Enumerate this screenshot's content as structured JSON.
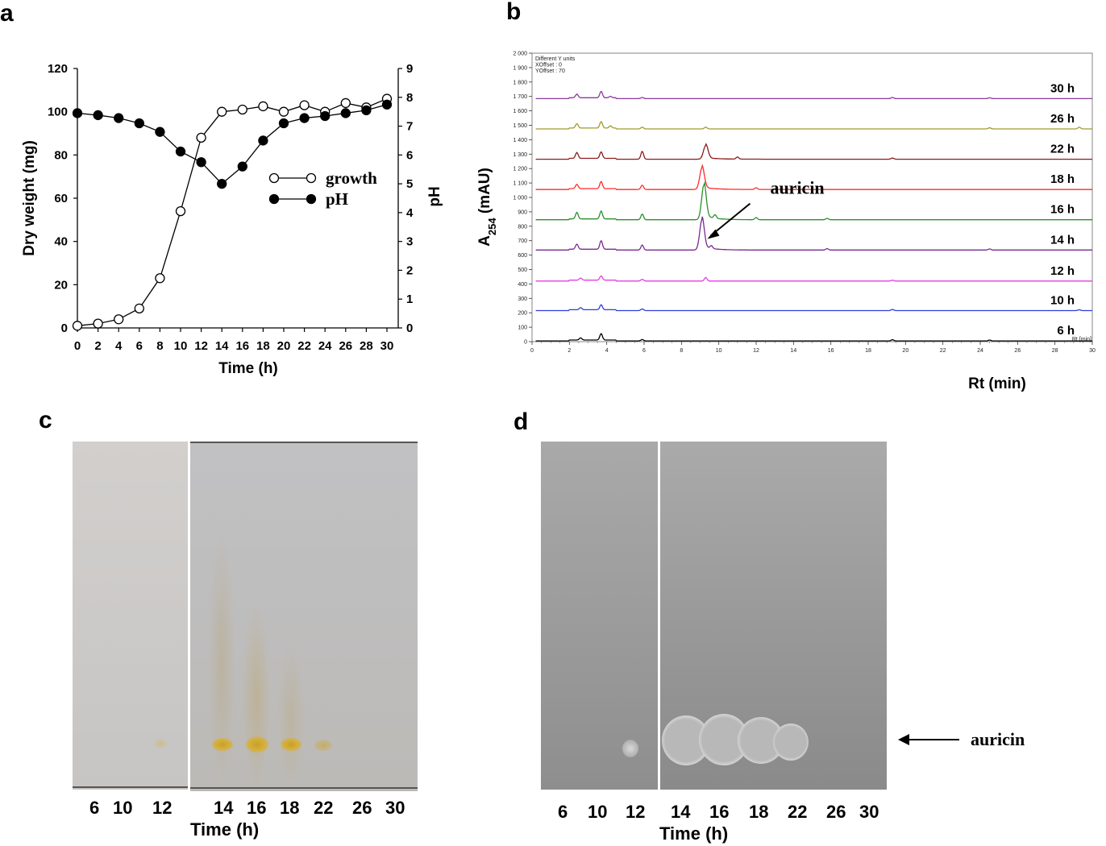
{
  "panels": {
    "a": "a",
    "b": "b",
    "c": "c",
    "d": "d"
  },
  "chart_data": [
    {
      "type": "line",
      "panel": "a",
      "xlabel": "Time (h)",
      "ylabel": "Dry weight (mg)",
      "y2label": "pH",
      "xlim": [
        0,
        30
      ],
      "ylim": [
        0,
        120
      ],
      "y2lim": [
        0,
        9
      ],
      "xticks": [
        0,
        2,
        4,
        6,
        8,
        10,
        12,
        14,
        16,
        18,
        20,
        22,
        24,
        26,
        28,
        30
      ],
      "yticks": [
        0,
        20,
        40,
        60,
        80,
        100,
        120
      ],
      "y2ticks": [
        0,
        1,
        2,
        3,
        4,
        5,
        6,
        7,
        8,
        9
      ],
      "legend_position": "center-right",
      "series": [
        {
          "name": "growth",
          "axis": "left",
          "marker": "open-circle",
          "x": [
            0,
            2,
            4,
            6,
            8,
            10,
            12,
            14,
            16,
            18,
            20,
            22,
            24,
            26,
            28,
            30
          ],
          "y": [
            1,
            2,
            4,
            9,
            23,
            54,
            88,
            100,
            101,
            102.5,
            100,
            103,
            100,
            104,
            102,
            106
          ]
        },
        {
          "name": "pH",
          "axis": "right",
          "marker": "filled-circle",
          "x": [
            0,
            2,
            4,
            6,
            8,
            10,
            12,
            14,
            16,
            18,
            20,
            22,
            24,
            26,
            28,
            30
          ],
          "y": [
            7.45,
            7.38,
            7.28,
            7.1,
            6.8,
            6.12,
            5.75,
            5.0,
            5.6,
            6.5,
            7.1,
            7.28,
            7.35,
            7.45,
            7.55,
            7.75
          ]
        }
      ]
    },
    {
      "type": "line",
      "panel": "b",
      "xlabel": "Rt (min)",
      "ylabel_main": "A",
      "ylabel_sub": "254",
      "ylabel_rest": " (mAU)",
      "header_lines": [
        "Different Y units",
        "XOffset : 0",
        "YOffset : 70"
      ],
      "corner_label": "Rt [min]",
      "xlim": [
        0,
        30
      ],
      "ylim": [
        0,
        2000
      ],
      "xticks": [
        0,
        2,
        4,
        6,
        8,
        10,
        12,
        14,
        16,
        18,
        20,
        22,
        24,
        26,
        28,
        30
      ],
      "yticks": [
        0,
        100,
        200,
        300,
        400,
        500,
        600,
        700,
        800,
        900,
        1000,
        1100,
        1200,
        1300,
        1400,
        1500,
        1600,
        1700,
        1800,
        1900,
        2000
      ],
      "ytick_labels": [
        "0",
        "100",
        "200",
        "300",
        "400",
        "500",
        "600",
        "700",
        "800",
        "900",
        "1 000",
        "1 100",
        "1 200",
        "1 300",
        "1 400",
        "1 500",
        "1 600",
        "1 700",
        "1 800",
        "1 900",
        "2 000"
      ],
      "annotation": "auricin",
      "series": [
        {
          "name": "6 h",
          "color": "#000000",
          "baseline": 5,
          "peaks": [
            [
              3.7,
              45
            ],
            [
              2.6,
              15
            ],
            [
              5.9,
              10
            ],
            [
              19.3,
              8
            ],
            [
              24.5,
              6
            ]
          ]
        },
        {
          "name": "10 h",
          "color": "#2e3adb",
          "baseline": 215,
          "peaks": [
            [
              3.7,
              35
            ],
            [
              2.6,
              15
            ],
            [
              5.9,
              12
            ],
            [
              19.3,
              8
            ],
            [
              29.3,
              6
            ]
          ]
        },
        {
          "name": "12 h",
          "color": "#e23ee6",
          "baseline": 420,
          "peaks": [
            [
              3.7,
              30
            ],
            [
              2.6,
              15
            ],
            [
              5.9,
              12
            ],
            [
              9.3,
              25
            ],
            [
              19.3,
              6
            ]
          ]
        },
        {
          "name": "14 h",
          "color": "#7a2a8f",
          "baseline": 635,
          "peaks": [
            [
              3.7,
              60
            ],
            [
              2.4,
              35
            ],
            [
              5.9,
              35
            ],
            [
              9.1,
              210
            ],
            [
              9.6,
              20
            ],
            [
              15.8,
              10
            ],
            [
              24.5,
              8
            ]
          ]
        },
        {
          "name": "16 h",
          "color": "#2a8f2a",
          "baseline": 845,
          "peaks": [
            [
              3.7,
              55
            ],
            [
              2.4,
              45
            ],
            [
              5.9,
              40
            ],
            [
              9.2,
              240
            ],
            [
              9.8,
              25
            ],
            [
              12.0,
              15
            ],
            [
              15.8,
              10
            ]
          ]
        },
        {
          "name": "18 h",
          "color": "#ff2a2a",
          "baseline": 1055,
          "peaks": [
            [
              3.7,
              50
            ],
            [
              2.4,
              30
            ],
            [
              5.9,
              30
            ],
            [
              9.1,
              150
            ],
            [
              12.0,
              12
            ]
          ]
        },
        {
          "name": "22 h",
          "color": "#8b1a1a",
          "baseline": 1265,
          "peaks": [
            [
              3.7,
              45
            ],
            [
              2.4,
              40
            ],
            [
              5.9,
              55
            ],
            [
              9.3,
              95
            ],
            [
              11.0,
              15
            ],
            [
              19.3,
              8
            ]
          ]
        },
        {
          "name": "26 h",
          "color": "#a09a2a",
          "baseline": 1475,
          "peaks": [
            [
              3.7,
              45
            ],
            [
              2.4,
              30
            ],
            [
              4.2,
              15
            ],
            [
              5.9,
              12
            ],
            [
              9.3,
              12
            ],
            [
              24.5,
              8
            ],
            [
              29.3,
              12
            ]
          ]
        },
        {
          "name": "30 h",
          "color": "#8a3a9a",
          "baseline": 1685,
          "peaks": [
            [
              3.7,
              45
            ],
            [
              2.4,
              25
            ],
            [
              4.2,
              10
            ],
            [
              5.9,
              8
            ],
            [
              19.3,
              8
            ],
            [
              24.5,
              6
            ]
          ]
        }
      ]
    }
  ],
  "panel_c": {
    "lanes": [
      "6",
      "10",
      "12",
      "14",
      "16",
      "18",
      "22",
      "26",
      "30"
    ],
    "xlabel": "Time (h)"
  },
  "panel_d": {
    "lanes": [
      "6",
      "10",
      "12",
      "14",
      "16",
      "18",
      "22",
      "26",
      "30"
    ],
    "xlabel": "Time (h)",
    "annotation": "auricin"
  }
}
